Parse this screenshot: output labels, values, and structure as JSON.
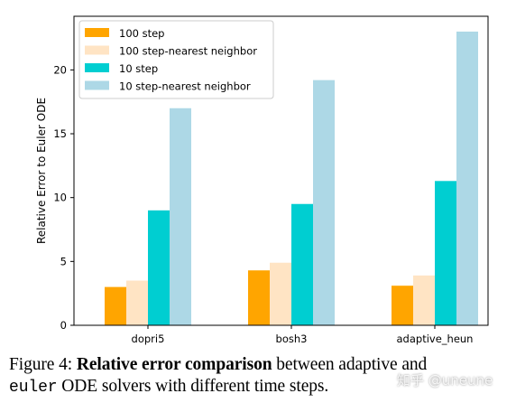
{
  "chart_data": {
    "type": "bar",
    "categories": [
      "dopri5",
      "bosh3",
      "adaptive_heun"
    ],
    "series": [
      {
        "name": "100 step",
        "values": [
          3.0,
          4.3,
          3.1
        ],
        "color": "#FFA500"
      },
      {
        "name": "100 step-nearest neighbor",
        "values": [
          3.5,
          4.9,
          3.9
        ],
        "color": "#FFE4C4"
      },
      {
        "name": "10 step",
        "values": [
          9.0,
          9.5,
          11.3
        ],
        "color": "#00CED1"
      },
      {
        "name": "10 step-nearest neighbor",
        "values": [
          17.0,
          19.2,
          23.0
        ],
        "color": "#ADD8E6"
      }
    ],
    "title": "",
    "xlabel": "",
    "ylabel": "Relative Error to Euler ODE",
    "ylim": [
      0,
      24.2
    ],
    "yticks": [
      0,
      5,
      10,
      15,
      20
    ],
    "grid": false,
    "legend_position": "top-left"
  },
  "caption": {
    "prefix": "Figure 4: ",
    "bold": "Relative error comparison",
    "middle": " between adaptive and",
    "code": "euler",
    "suffix": " ODE solvers with different time steps."
  },
  "watermark": "知乎 @uneune"
}
